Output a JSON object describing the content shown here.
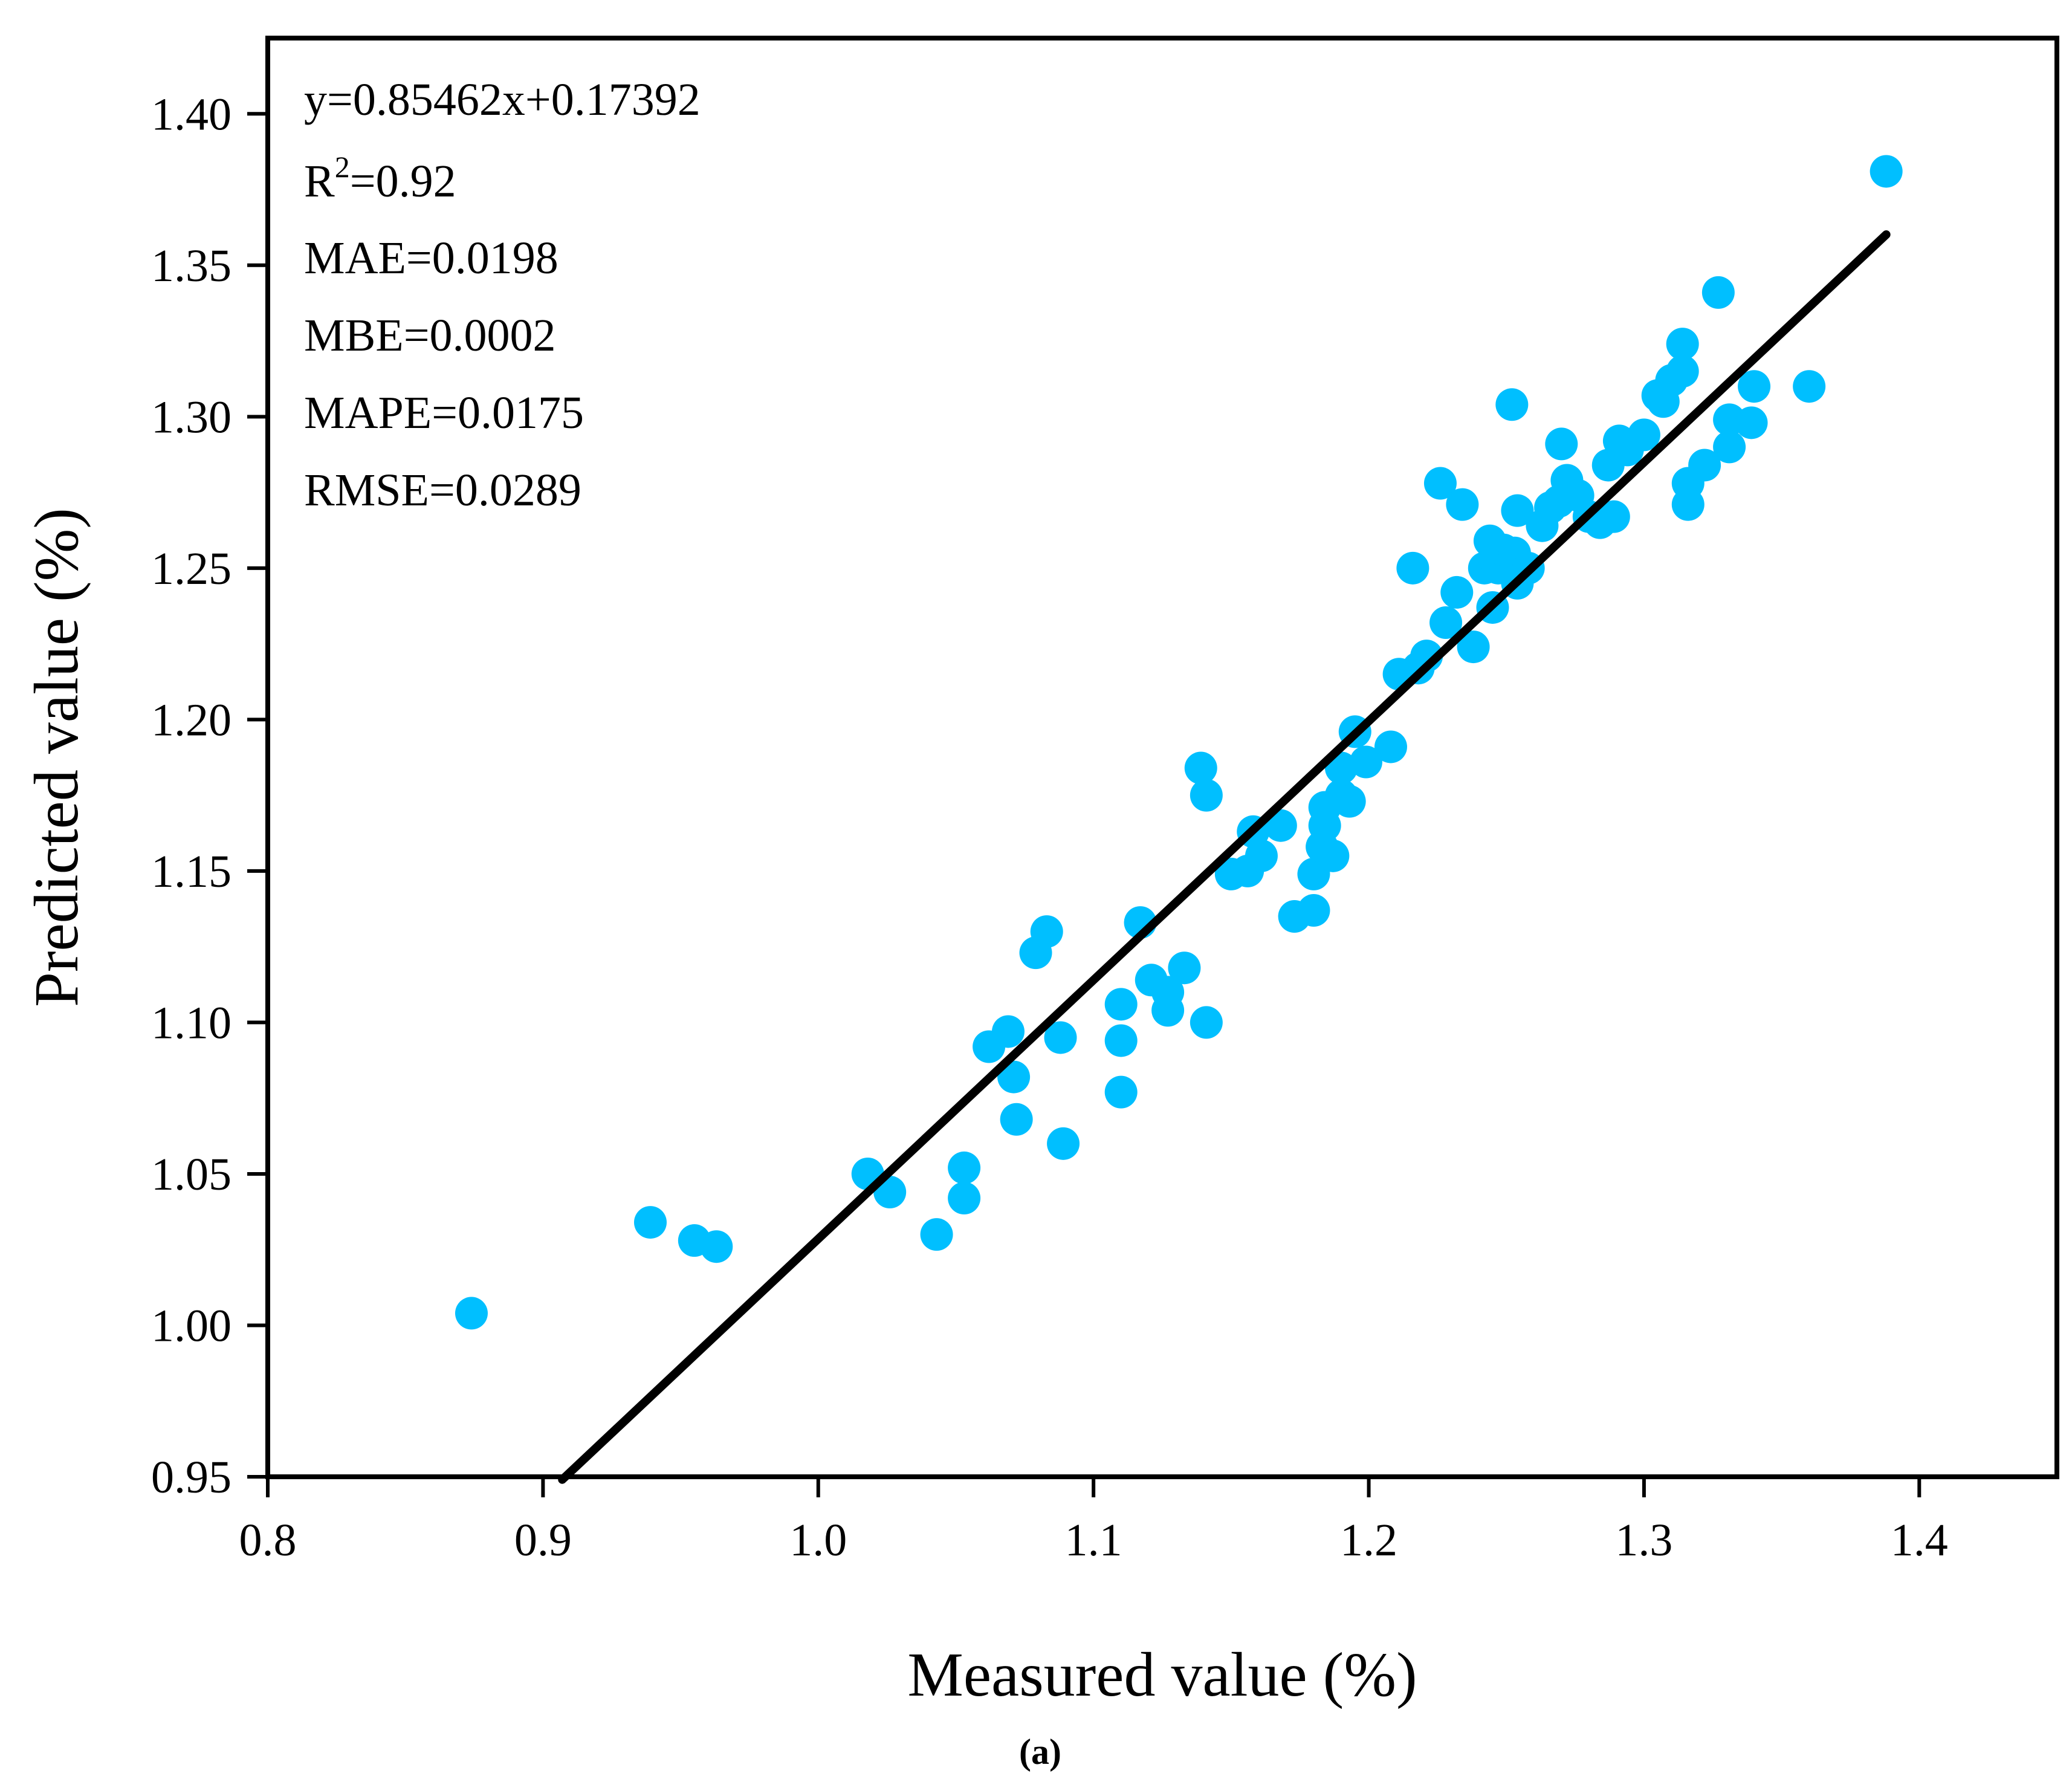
{
  "chart_data": {
    "type": "scatter",
    "caption": "(a)",
    "xlabel": "Measured value (%)",
    "ylabel": "Predicted value (%)",
    "xlim": [
      0.8,
      1.45
    ],
    "ylim": [
      0.95,
      1.425
    ],
    "xticks": [
      "0.8",
      "0.9",
      "1.0",
      "1.1",
      "1.2",
      "1.3",
      "1.4"
    ],
    "xtick_values": [
      0.8,
      0.9,
      1.0,
      1.1,
      1.2,
      1.3,
      1.4
    ],
    "yticks": [
      "0.95",
      "1.00",
      "1.05",
      "1.10",
      "1.15",
      "1.20",
      "1.25",
      "1.30",
      "1.35",
      "1.40"
    ],
    "ytick_values": [
      0.95,
      1.0,
      1.05,
      1.1,
      1.15,
      1.2,
      1.25,
      1.3,
      1.35,
      1.4
    ],
    "point_color": "#00BFFF",
    "line_color": "#000000",
    "annotations": {
      "equation": "y=0.85462x+0.17392",
      "r2_prefix": "R",
      "r2_sup": "2",
      "r2_value": "=0.92",
      "mae": "MAE=0.0198",
      "mbe": "MBE=0.0002",
      "mape": "MAPE=0.0175",
      "rmse": "RMSE=0.0289"
    },
    "fit_line": {
      "slope": 0.85462,
      "intercept": 0.17392,
      "x_range": [
        0.907,
        1.388
      ]
    },
    "series": [
      {
        "name": "samples",
        "points": [
          [
            0.874,
            1.004
          ],
          [
            0.939,
            1.034
          ],
          [
            0.955,
            1.028
          ],
          [
            0.963,
            1.026
          ],
          [
            1.018,
            1.05
          ],
          [
            1.026,
            1.044
          ],
          [
            1.043,
            1.03
          ],
          [
            1.053,
            1.052
          ],
          [
            1.053,
            1.042
          ],
          [
            1.062,
            1.092
          ],
          [
            1.069,
            1.097
          ],
          [
            1.071,
            1.082
          ],
          [
            1.072,
            1.068
          ],
          [
            1.079,
            1.123
          ],
          [
            1.083,
            1.13
          ],
          [
            1.088,
            1.095
          ],
          [
            1.089,
            1.06
          ],
          [
            1.11,
            1.106
          ],
          [
            1.11,
            1.094
          ],
          [
            1.11,
            1.077
          ],
          [
            1.117,
            1.133
          ],
          [
            1.121,
            1.114
          ],
          [
            1.127,
            1.11
          ],
          [
            1.127,
            1.104
          ],
          [
            1.133,
            1.118
          ],
          [
            1.139,
            1.184
          ],
          [
            1.141,
            1.175
          ],
          [
            1.141,
            1.1
          ],
          [
            1.15,
            1.149
          ],
          [
            1.156,
            1.15
          ],
          [
            1.158,
            1.163
          ],
          [
            1.161,
            1.155
          ],
          [
            1.168,
            1.165
          ],
          [
            1.173,
            1.135
          ],
          [
            1.18,
            1.137
          ],
          [
            1.18,
            1.149
          ],
          [
            1.183,
            1.158
          ],
          [
            1.184,
            1.165
          ],
          [
            1.184,
            1.171
          ],
          [
            1.187,
            1.155
          ],
          [
            1.19,
            1.175
          ],
          [
            1.19,
            1.184
          ],
          [
            1.193,
            1.173
          ],
          [
            1.195,
            1.196
          ],
          [
            1.199,
            1.186
          ],
          [
            1.208,
            1.191
          ],
          [
            1.211,
            1.215
          ],
          [
            1.216,
            1.25
          ],
          [
            1.218,
            1.217
          ],
          [
            1.221,
            1.221
          ],
          [
            1.226,
            1.278
          ],
          [
            1.228,
            1.232
          ],
          [
            1.232,
            1.242
          ],
          [
            1.234,
            1.271
          ],
          [
            1.238,
            1.224
          ],
          [
            1.242,
            1.25
          ],
          [
            1.244,
            1.259
          ],
          [
            1.245,
            1.237
          ],
          [
            1.247,
            1.25
          ],
          [
            1.249,
            1.256
          ],
          [
            1.252,
            1.304
          ],
          [
            1.253,
            1.255
          ],
          [
            1.254,
            1.269
          ],
          [
            1.254,
            1.245
          ],
          [
            1.258,
            1.25
          ],
          [
            1.263,
            1.264
          ],
          [
            1.266,
            1.27
          ],
          [
            1.269,
            1.272
          ],
          [
            1.27,
            1.291
          ],
          [
            1.272,
            1.279
          ],
          [
            1.276,
            1.274
          ],
          [
            1.28,
            1.267
          ],
          [
            1.284,
            1.265
          ],
          [
            1.287,
            1.284
          ],
          [
            1.289,
            1.267
          ],
          [
            1.291,
            1.292
          ],
          [
            1.294,
            1.289
          ],
          [
            1.3,
            1.294
          ],
          [
            1.305,
            1.307
          ],
          [
            1.307,
            1.305
          ],
          [
            1.31,
            1.312
          ],
          [
            1.314,
            1.315
          ],
          [
            1.314,
            1.324
          ],
          [
            1.316,
            1.278
          ],
          [
            1.316,
            1.271
          ],
          [
            1.322,
            1.284
          ],
          [
            1.327,
            1.341
          ],
          [
            1.331,
            1.299
          ],
          [
            1.331,
            1.29
          ],
          [
            1.339,
            1.298
          ],
          [
            1.34,
            1.31
          ],
          [
            1.36,
            1.31
          ],
          [
            1.388,
            1.381
          ]
        ]
      }
    ]
  }
}
